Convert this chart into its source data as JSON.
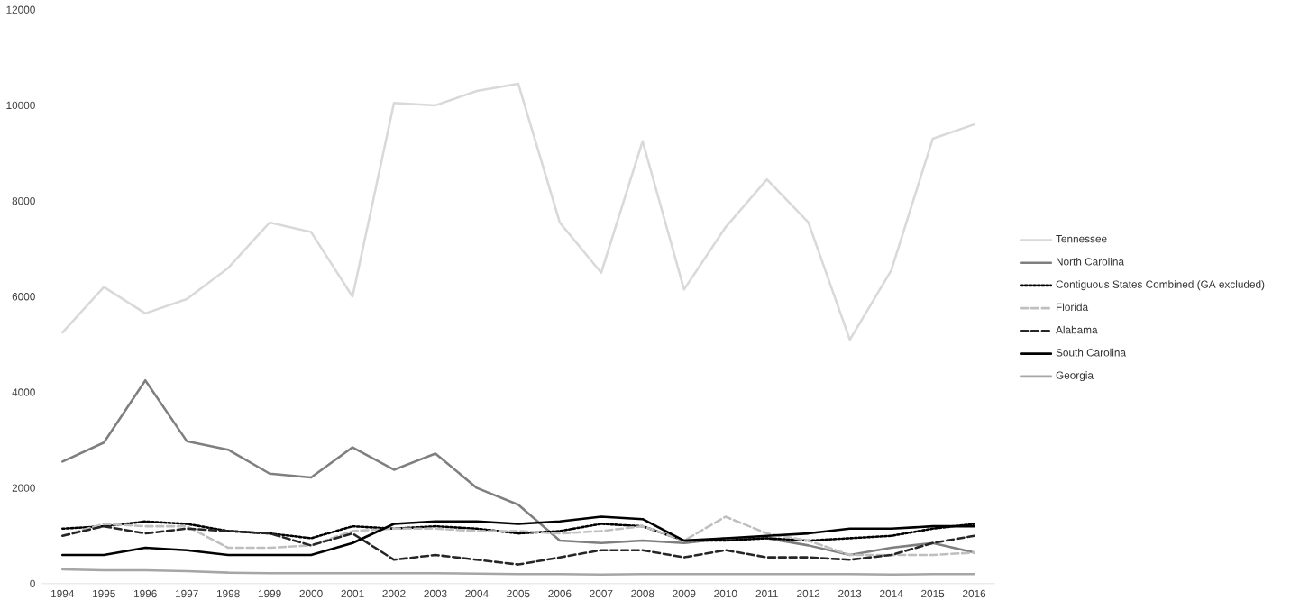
{
  "chart_data": {
    "type": "line",
    "categories": [
      "1994",
      "1995",
      "1996",
      "1997",
      "1998",
      "1999",
      "2000",
      "2001",
      "2002",
      "2003",
      "2004",
      "2005",
      "2006",
      "2007",
      "2008",
      "2009",
      "2010",
      "2011",
      "2012",
      "2013",
      "2014",
      "2015",
      "2016"
    ],
    "ylim": [
      0,
      12000
    ],
    "yticks": [
      0,
      2000,
      4000,
      6000,
      8000,
      10000,
      12000
    ],
    "grid": false,
    "legend": "right",
    "marker": "none",
    "series": [
      {
        "name": "Tennessee",
        "color": "#d9d9d9",
        "line_style": "solid",
        "values": [
          5250,
          6200,
          5650,
          5950,
          6600,
          7550,
          7350,
          6000,
          10050,
          10000,
          10300,
          10450,
          7550,
          6500,
          9250,
          6150,
          7450,
          8450,
          7550,
          5100,
          6550,
          9300,
          9600
        ]
      },
      {
        "name": "North Carolina",
        "color": "#7f7f7f",
        "line_style": "solid",
        "values": [
          2550,
          2950,
          4250,
          2980,
          2800,
          2300,
          2220,
          2850,
          2380,
          2720,
          2000,
          1650,
          900,
          850,
          900,
          850,
          950,
          950,
          800,
          600,
          750,
          850,
          650
        ]
      },
      {
        "name": "Contiguous States Combined (GA excluded)",
        "color": "#000000",
        "line_style": "dotted",
        "values": [
          1150,
          1200,
          1300,
          1250,
          1100,
          1050,
          950,
          1200,
          1150,
          1200,
          1150,
          1050,
          1100,
          1250,
          1200,
          900,
          900,
          950,
          900,
          950,
          1000,
          1150,
          1250
        ]
      },
      {
        "name": "Florida",
        "color": "#bfbfbf",
        "line_style": "dashed",
        "values": [
          1000,
          1250,
          1200,
          1200,
          750,
          750,
          800,
          1100,
          1150,
          1150,
          1100,
          1100,
          1050,
          1100,
          1200,
          900,
          1400,
          1050,
          900,
          600,
          600,
          600,
          650
        ]
      },
      {
        "name": "Alabama",
        "color": "#262626",
        "line_style": "dashed",
        "values": [
          1000,
          1200,
          1050,
          1150,
          1100,
          1050,
          800,
          1050,
          500,
          600,
          500,
          400,
          550,
          700,
          700,
          550,
          700,
          550,
          550,
          500,
          600,
          850,
          1000
        ]
      },
      {
        "name": "South Carolina",
        "color": "#000000",
        "line_style": "solid",
        "values": [
          600,
          600,
          750,
          700,
          600,
          600,
          600,
          850,
          1250,
          1300,
          1300,
          1250,
          1300,
          1400,
          1350,
          900,
          950,
          1000,
          1050,
          1150,
          1150,
          1200,
          1200
        ]
      },
      {
        "name": "Georgia",
        "color": "#a6a6a6",
        "line_style": "solid",
        "values": [
          300,
          280,
          280,
          260,
          230,
          220,
          220,
          220,
          220,
          220,
          210,
          200,
          200,
          190,
          200,
          200,
          200,
          200,
          200,
          200,
          190,
          200,
          200
        ]
      }
    ]
  }
}
